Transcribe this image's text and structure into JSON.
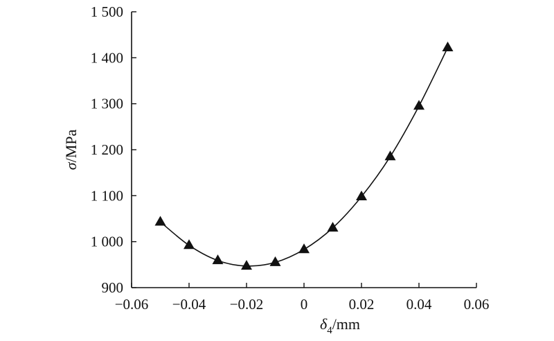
{
  "chart_data": {
    "type": "line",
    "title": "",
    "xlabel": {
      "symbol": "δ",
      "sub": "4",
      "unit": "/mm"
    },
    "ylabel": {
      "symbol": "σ",
      "unit": "/MPa"
    },
    "xlim": [
      -0.06,
      0.06
    ],
    "ylim": [
      900,
      1500
    ],
    "xticks": [
      -0.06,
      -0.04,
      -0.02,
      0,
      0.02,
      0.04,
      0.06
    ],
    "xtick_labels": [
      "−0.06",
      "−0.04",
      "−0.02",
      "0",
      "0.02",
      "0.04",
      "0.06"
    ],
    "yticks": [
      900,
      1000,
      1100,
      1200,
      1300,
      1400,
      1500
    ],
    "ytick_labels": [
      "900",
      "1 000",
      "1 100",
      "1 200",
      "1 300",
      "1 400",
      "1 500"
    ],
    "grid": false,
    "legend": "none",
    "marker": "triangle",
    "color": "#111111",
    "series": [
      {
        "x": [
          -0.05,
          -0.04,
          -0.03,
          -0.02,
          -0.01,
          0,
          0.01,
          0.02,
          0.03,
          0.04,
          0.05
        ],
        "y": [
          1043,
          992,
          959,
          947,
          955,
          983,
          1030,
          1098,
          1185,
          1295,
          1422
        ]
      }
    ]
  }
}
